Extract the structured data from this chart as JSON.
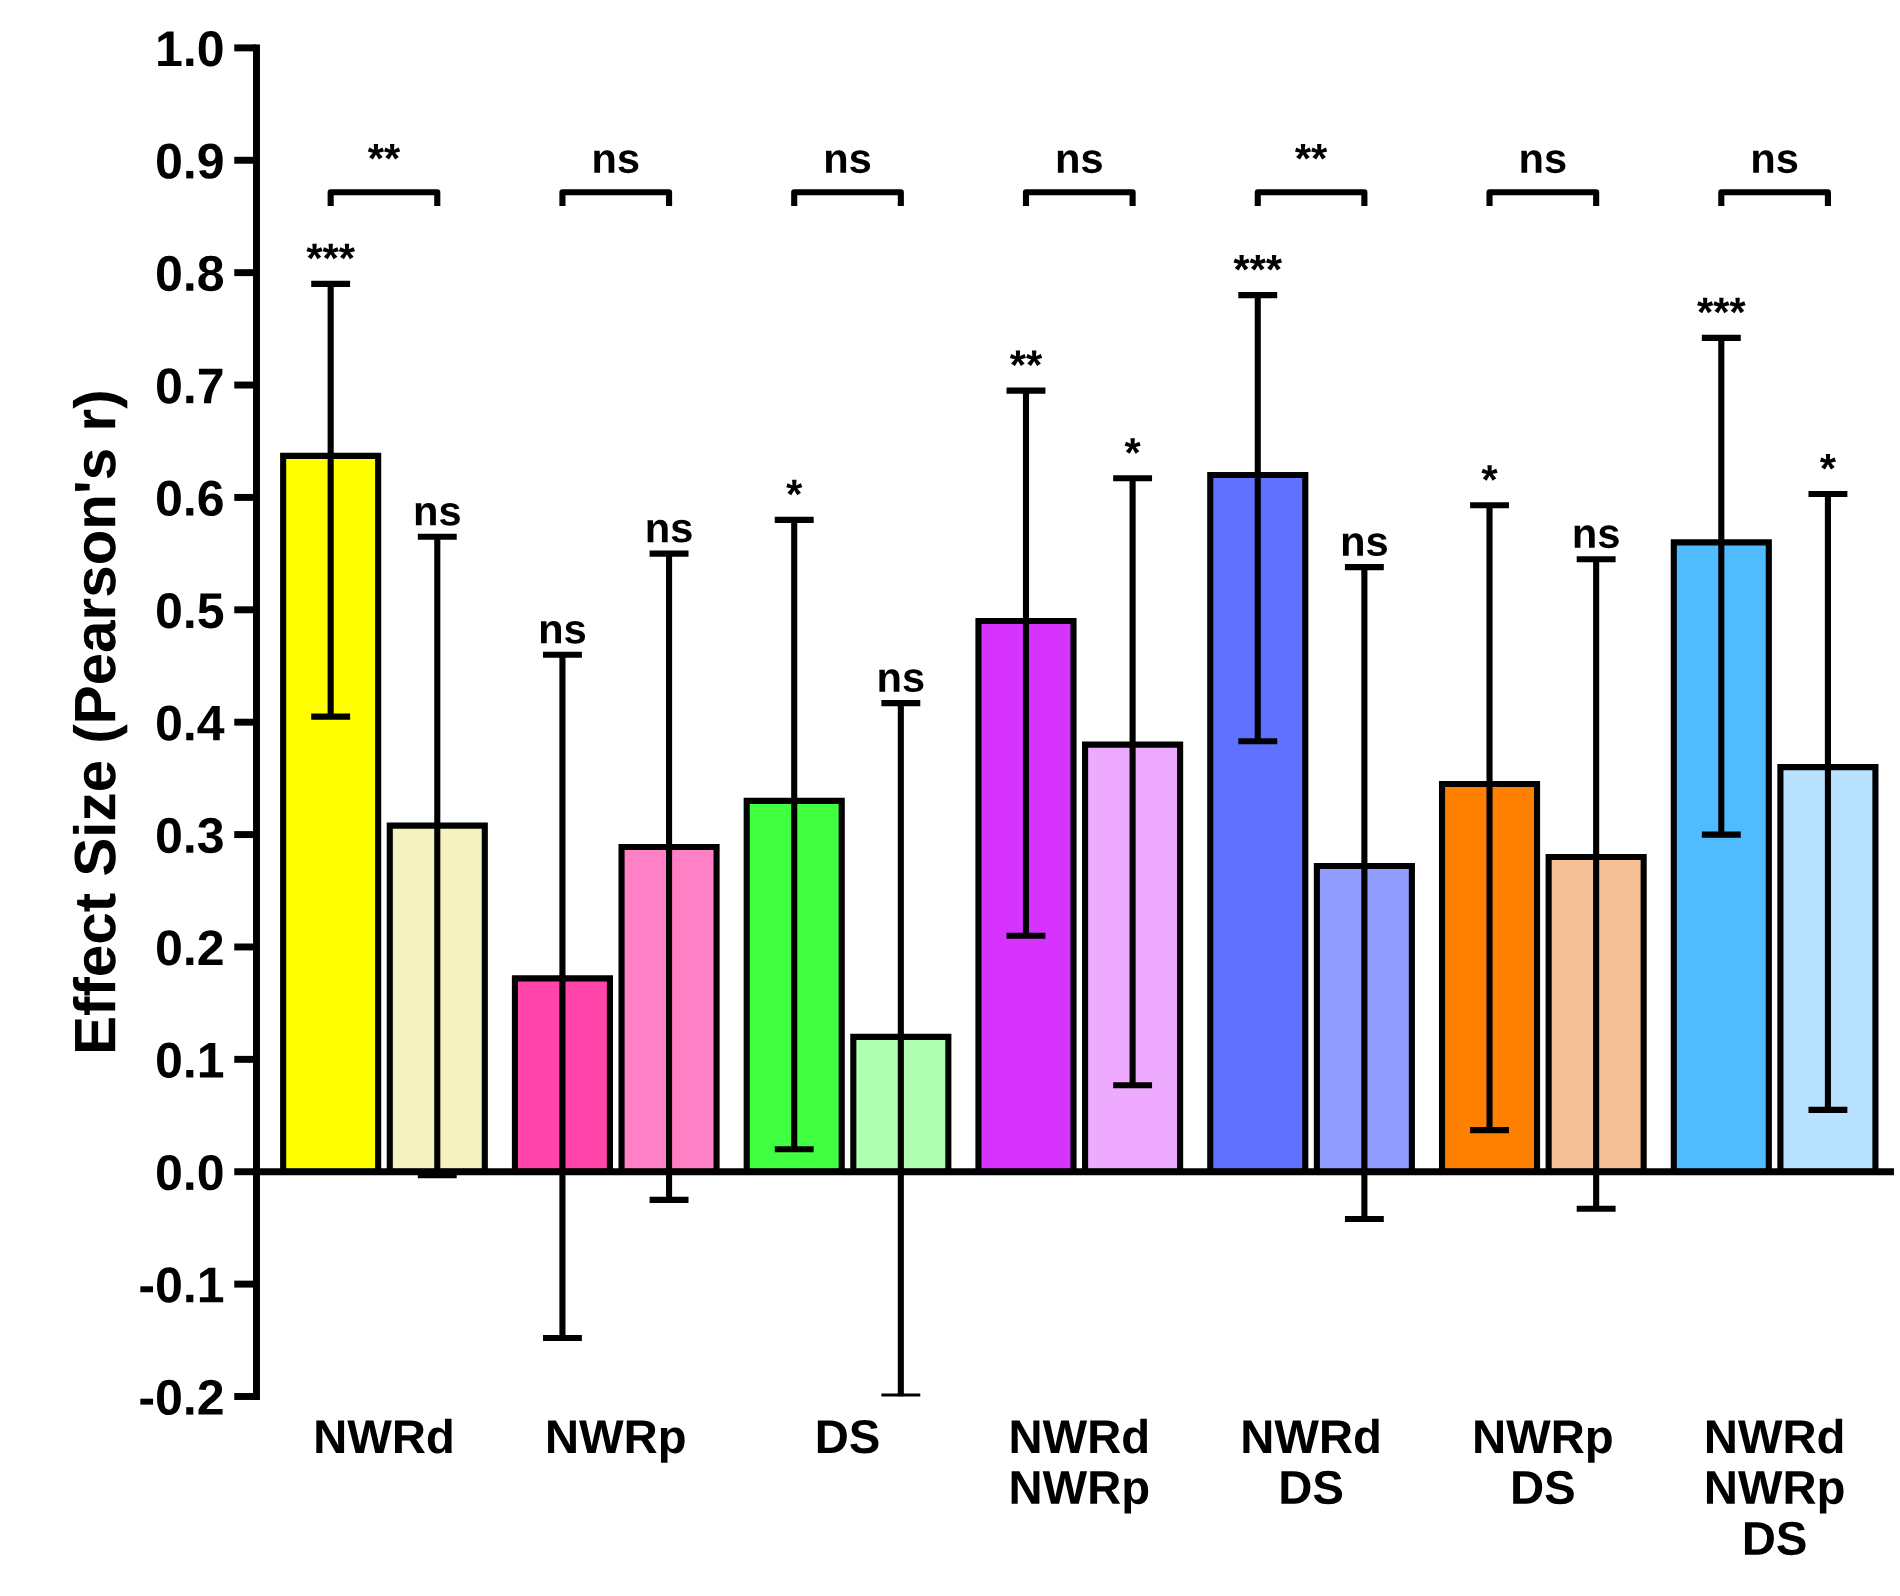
{
  "chart_data": {
    "type": "bar",
    "ylabel": "Effect Size (Pearson's r)",
    "categories": [
      "NWRd",
      "NWRp",
      "DS",
      "NWRd\nNWRp",
      "NWRd\nDS",
      "NWRp\nDS",
      "NWRd\nNWRp\nDS"
    ],
    "series": [
      {
        "colors": [
          "#ffff00",
          "#ff44aa",
          "#40ff40",
          "#d633ff",
          "#6070ff",
          "#ff8000",
          "#50bbff"
        ],
        "values": [
          0.637,
          0.172,
          0.33,
          0.49,
          0.62,
          0.345,
          0.56
        ],
        "errors": [
          [
            0.405,
            0.79
          ],
          [
            -0.148,
            0.46
          ],
          [
            0.02,
            0.58
          ],
          [
            0.21,
            0.695
          ],
          [
            0.383,
            0.78
          ],
          [
            0.037,
            0.593
          ],
          [
            0.3,
            0.742
          ]
        ]
      },
      {
        "colors": [
          "#f6f2c0",
          "#ff80c4",
          "#b0ffb0",
          "#eeaaff",
          "#909cff",
          "#f6c096",
          "#b8e2ff"
        ],
        "values": [
          0.308,
          0.289,
          0.12,
          0.38,
          0.272,
          0.28,
          0.36
        ],
        "errors": [
          [
            -0.003,
            0.565
          ],
          [
            -0.025,
            0.55
          ],
          [
            -0.2,
            0.417
          ],
          [
            0.077,
            0.617
          ],
          [
            -0.042,
            0.538
          ],
          [
            -0.033,
            0.545
          ],
          [
            0.055,
            0.603
          ]
        ]
      }
    ],
    "annotations": [
      "**",
      "ns",
      "ns",
      "ns",
      "**",
      "ns",
      "ns",
      "***",
      "ns",
      "ns",
      "ns",
      "*",
      "ns",
      "**",
      "*",
      "***",
      "ns",
      "*",
      "ns",
      "***",
      "*"
    ],
    "ylim": [
      -0.2,
      1.0
    ],
    "yticks": [
      {
        "value": -0.2,
        "label": "-0.2"
      },
      {
        "value": -0.1,
        "label": "-0.1"
      },
      {
        "value": 0.0,
        "label": "0.0"
      },
      {
        "value": 0.1,
        "label": "0.1"
      },
      {
        "value": 0.2,
        "label": "0.2"
      },
      {
        "value": 0.3,
        "label": "0.3"
      },
      {
        "value": 0.4,
        "label": "0.4"
      },
      {
        "value": 0.5,
        "label": "0.5"
      },
      {
        "value": 0.6,
        "label": "0.6"
      },
      {
        "value": 0.7,
        "label": "0.7"
      },
      {
        "value": 0.8,
        "label": "0.8"
      },
      {
        "value": 0.9,
        "label": "0.9"
      },
      {
        "value": 1.0,
        "label": "1.0"
      }
    ],
    "legend": false
  }
}
